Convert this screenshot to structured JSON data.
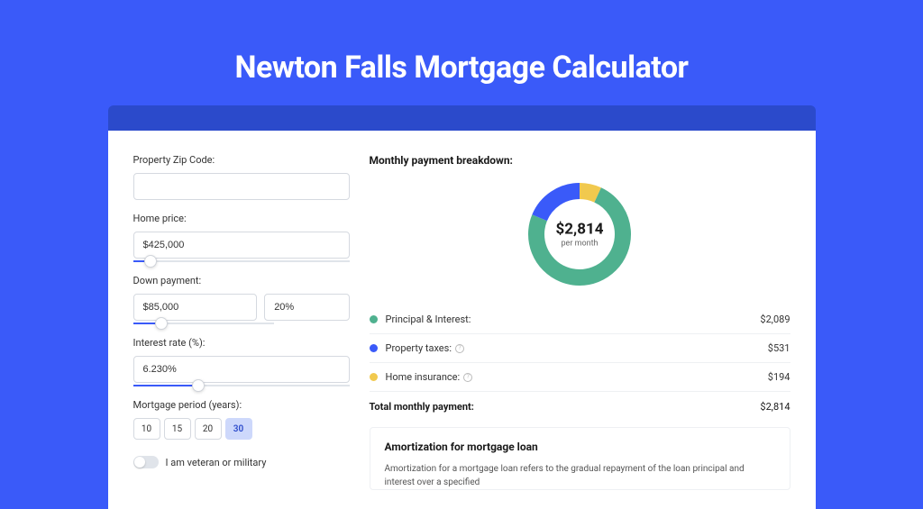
{
  "page_title": "Newton Falls Mortgage Calculator",
  "colors": {
    "page_bg": "#3a5af9",
    "strip_bg": "#2b4acb",
    "card_bg": "#ffffff",
    "principal": "#4fb18f",
    "taxes": "#3a5af9",
    "insurance": "#f1c94e",
    "text": "#333333"
  },
  "form": {
    "zip_label": "Property Zip Code:",
    "zip_value": "",
    "price_label": "Home price:",
    "price_value": "$425,000",
    "price_slider_pct": 8,
    "down_label": "Down payment:",
    "down_value": "$85,000",
    "down_pct_value": "20%",
    "down_slider_pct": 20,
    "rate_label": "Interest rate (%):",
    "rate_value": "6.230%",
    "rate_slider_pct": 30,
    "period_label": "Mortgage period (years):",
    "periods": [
      "10",
      "15",
      "20",
      "30"
    ],
    "period_active_index": 3,
    "veteran_label": "I am veteran or military",
    "veteran_on": false
  },
  "breakdown": {
    "title": "Monthly payment breakdown:",
    "center_value": "$2,814",
    "center_sub": "per month",
    "items": [
      {
        "label": "Principal & Interest:",
        "value": "$2,089",
        "color": "#4fb18f",
        "help": false,
        "pct": 74.2
      },
      {
        "label": "Property taxes:",
        "value": "$531",
        "color": "#3a5af9",
        "help": true,
        "pct": 18.9
      },
      {
        "label": "Home insurance:",
        "value": "$194",
        "color": "#f1c94e",
        "help": true,
        "pct": 6.9
      }
    ],
    "total_label": "Total monthly payment:",
    "total_value": "$2,814"
  },
  "amort": {
    "title": "Amortization for mortgage loan",
    "text": "Amortization for a mortgage loan refers to the gradual repayment of the loan principal and interest over a specified"
  },
  "donut": {
    "radius": 48,
    "stroke": 18
  }
}
